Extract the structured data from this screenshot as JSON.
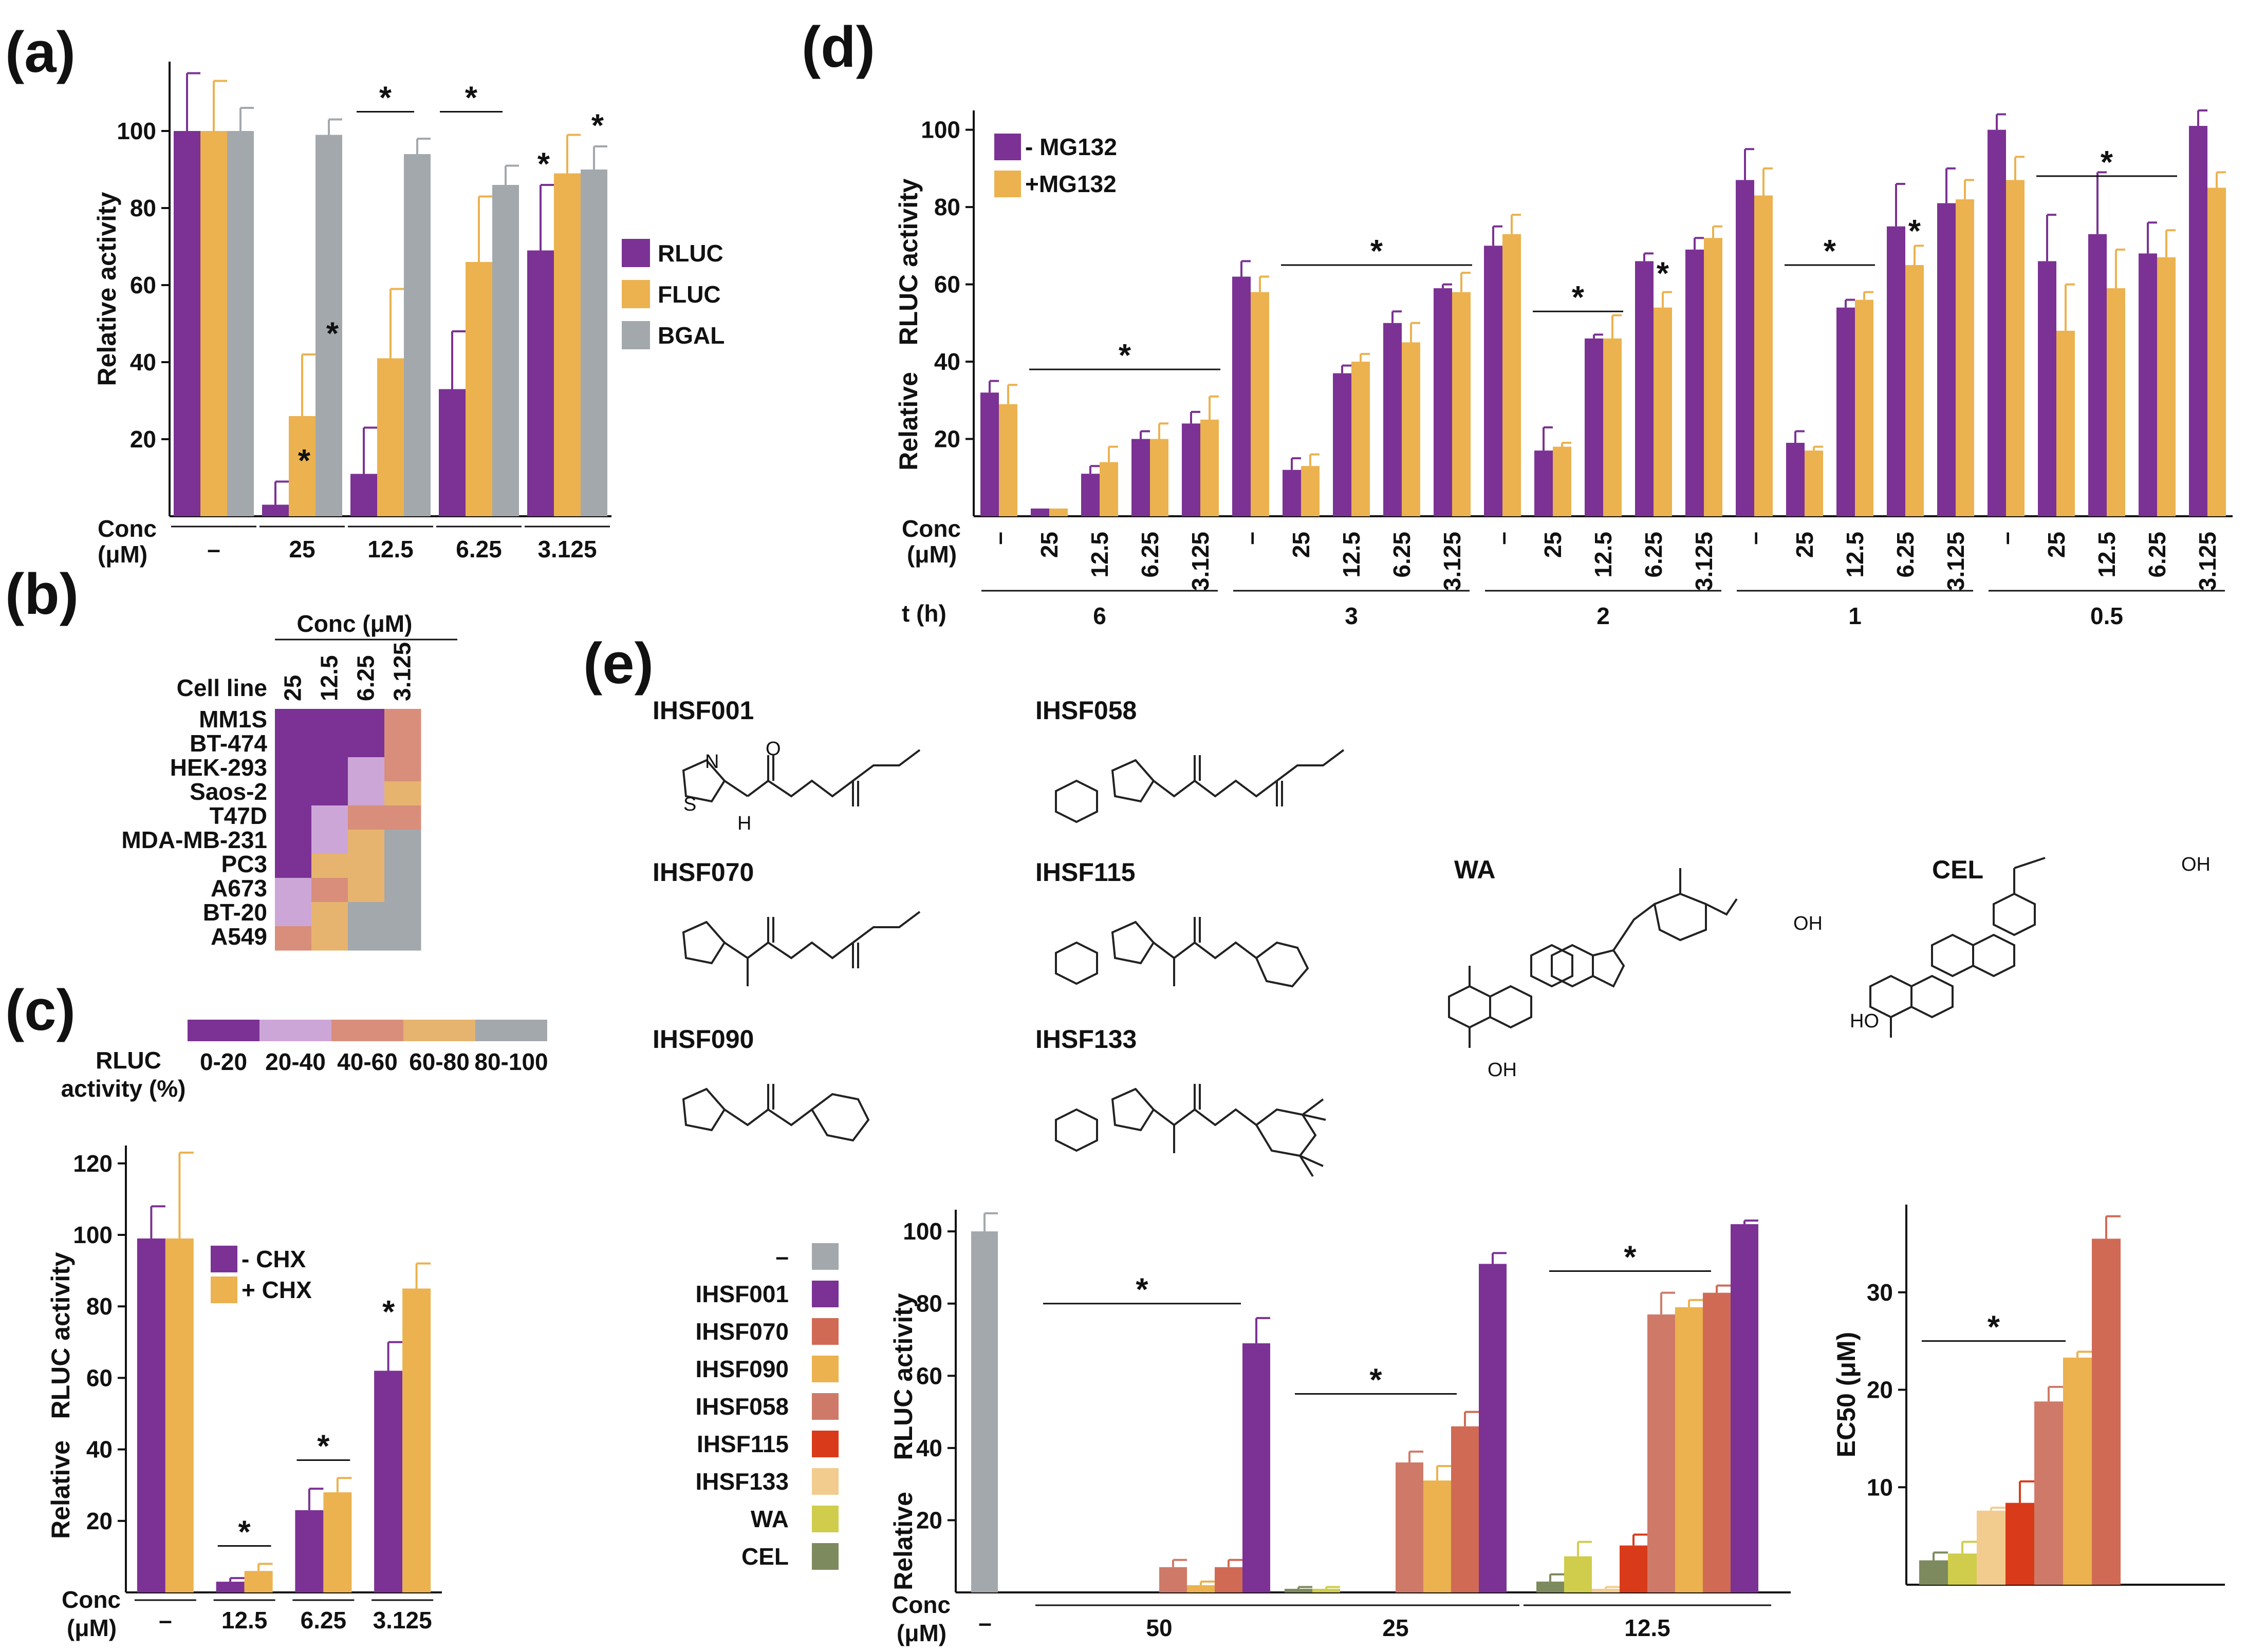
{
  "colors": {
    "purple": "#7b3294",
    "orange": "#ebb24f",
    "grey": "#a3a8ad",
    "heat": [
      "#7b3294",
      "#cda6d8",
      "#d98e7b",
      "#e6b46e",
      "#a3a8ad"
    ],
    "e_series": {
      "–": "#a3a8ad",
      "IHSF001": "#7b3294",
      "IHSF070": "#d06a55",
      "IHSF090": "#ebb24f",
      "IHSF058": "#cf7a68",
      "IHSF115": "#d93b1a",
      "IHSF133": "#f2cc8f",
      "WA": "#cfcd4b",
      "CEL": "#7d8a5e"
    }
  },
  "panels": {
    "a": "(a)",
    "b": "(b)",
    "c": "(c)",
    "d": "(d)",
    "e": "(e)"
  },
  "chart_data": [
    {
      "id": "a",
      "type": "bar",
      "ylabel": "Relative activity",
      "ylim": [
        0,
        118
      ],
      "yticks": [
        20,
        40,
        60,
        80,
        100
      ],
      "xaxis_label": [
        "Conc",
        "(μM)"
      ],
      "categories": [
        "–",
        "25",
        "12.5",
        "6.25",
        "3.125"
      ],
      "series": [
        {
          "name": "RLUC",
          "values": [
            100,
            3,
            11,
            33,
            69
          ],
          "errors": [
            15,
            6,
            12,
            15,
            17
          ]
        },
        {
          "name": "FLUC",
          "values": [
            100,
            26,
            41,
            66,
            89
          ],
          "errors": [
            13,
            16,
            18,
            17,
            10
          ]
        },
        {
          "name": "BGAL",
          "values": [
            100,
            99,
            94,
            86,
            90
          ],
          "errors": [
            6,
            4,
            4,
            5,
            6
          ]
        }
      ],
      "stars": [
        "*",
        "*",
        "*",
        "*",
        "*",
        "*"
      ],
      "legend": "right"
    },
    {
      "id": "b",
      "type": "heatmap",
      "title": "Conc (μM)",
      "row_header": "Cell line",
      "columns": [
        "25",
        "12.5",
        "6.25",
        "3.125"
      ],
      "rows": [
        "MM1S",
        "BT-474",
        "HEK-293",
        "Saos-2",
        "T47D",
        "MDA-MB-231",
        "PC3",
        "A673",
        "BT-20",
        "A549"
      ],
      "bins": [
        [
          0,
          0,
          0,
          2
        ],
        [
          0,
          0,
          0,
          2
        ],
        [
          0,
          0,
          1,
          2
        ],
        [
          0,
          0,
          1,
          3
        ],
        [
          0,
          1,
          2,
          2
        ],
        [
          0,
          1,
          3,
          4
        ],
        [
          0,
          3,
          3,
          4
        ],
        [
          1,
          2,
          3,
          4
        ],
        [
          1,
          3,
          4,
          4
        ],
        [
          2,
          3,
          4,
          4
        ]
      ],
      "legend_title": [
        "RLUC",
        "activity (%)"
      ],
      "legend_bins": [
        "0-20",
        "20-40",
        "40-60",
        "60-80",
        "80-100"
      ]
    },
    {
      "id": "c",
      "type": "bar",
      "ylabel": [
        "Relative",
        "RLUC activity"
      ],
      "ylim": [
        0,
        125
      ],
      "yticks": [
        20,
        40,
        60,
        80,
        100,
        120
      ],
      "xaxis_label": [
        "Conc",
        "(μM)"
      ],
      "categories": [
        "–",
        "12.5",
        "6.25",
        "3.125"
      ],
      "series": [
        {
          "name": "- CHX",
          "values": [
            99,
            3,
            23,
            62
          ],
          "errors": [
            9,
            1,
            6,
            8
          ]
        },
        {
          "name": "+ CHX",
          "values": [
            99,
            6,
            28,
            85
          ],
          "errors": [
            24,
            2,
            4,
            7
          ]
        }
      ],
      "stars": [
        "*",
        "*",
        "*"
      ],
      "legend": "top-right"
    },
    {
      "id": "d",
      "type": "bar",
      "ylabel": [
        "Relative",
        "RLUC activity"
      ],
      "ylim": [
        0,
        105
      ],
      "yticks": [
        20,
        40,
        60,
        80,
        100
      ],
      "xaxis_label": [
        "Conc",
        "(μM)"
      ],
      "group_label": "t (h)",
      "groups": [
        "6",
        "3",
        "2",
        "1",
        "0.5"
      ],
      "categories": [
        "–",
        "25",
        "12.5",
        "6.25",
        "3.125"
      ],
      "series": [
        {
          "name": "- MG132",
          "values": [
            [
              32,
              2,
              11,
              20,
              24
            ],
            [
              62,
              12,
              37,
              50,
              59
            ],
            [
              70,
              17,
              46,
              66,
              69
            ],
            [
              87,
              19,
              54,
              75,
              81
            ],
            [
              100,
              66,
              73,
              68,
              101
            ]
          ],
          "errors": [
            [
              3,
              0,
              2,
              2,
              3
            ],
            [
              4,
              3,
              2,
              3,
              1
            ],
            [
              5,
              6,
              1,
              2,
              3
            ],
            [
              8,
              3,
              2,
              11,
              9
            ],
            [
              4,
              12,
              16,
              8,
              4
            ]
          ]
        },
        {
          "name": "+MG132",
          "values": [
            [
              29,
              2,
              14,
              20,
              25
            ],
            [
              58,
              13,
              40,
              45,
              58
            ],
            [
              73,
              18,
              46,
              54,
              72
            ],
            [
              83,
              17,
              56,
              65,
              82
            ],
            [
              87,
              48,
              59,
              67,
              85
            ]
          ],
          "errors": [
            [
              5,
              0,
              4,
              4,
              6
            ],
            [
              4,
              3,
              2,
              5,
              5
            ],
            [
              5,
              1,
              6,
              4,
              3
            ],
            [
              7,
              1,
              2,
              5,
              5
            ],
            [
              6,
              12,
              10,
              7,
              4
            ]
          ]
        }
      ],
      "stars": [
        "*",
        "*",
        "*",
        "*",
        "*",
        "*"
      ],
      "legend": "top-left"
    },
    {
      "id": "e1",
      "type": "bar",
      "ylabel": [
        "Relative",
        "RLUC activity"
      ],
      "ylim": [
        0,
        106
      ],
      "yticks": [
        20,
        40,
        60,
        80,
        100
      ],
      "xaxis_label": [
        "Conc",
        "(μM)"
      ],
      "categories": [
        "–",
        "50",
        "25",
        "12.5"
      ],
      "series_names": [
        "–",
        "IHSF001",
        "IHSF070",
        "IHSF090",
        "IHSF058",
        "IHSF115",
        "IHSF133",
        "WA",
        "CEL"
      ],
      "bar_order": [
        "CEL",
        "WA",
        "IHSF133",
        "IHSF115",
        "IHSF058",
        "IHSF090",
        "IHSF070",
        "IHSF001"
      ],
      "values": {
        "–": {
          "–": 100
        },
        "50": {
          "CEL": 0,
          "WA": 0,
          "IHSF133": 0,
          "IHSF115": 0,
          "IHSF058": 7,
          "IHSF090": 2,
          "IHSF070": 7,
          "IHSF001": 69
        },
        "25": {
          "CEL": 1,
          "WA": 1,
          "IHSF133": 0,
          "IHSF115": 0,
          "IHSF058": 36,
          "IHSF090": 31,
          "IHSF070": 46,
          "IHSF001": 91
        },
        "12.5": {
          "CEL": 3,
          "WA": 10,
          "IHSF133": 1,
          "IHSF115": 13,
          "IHSF058": 77,
          "IHSF090": 79,
          "IHSF070": 83,
          "IHSF001": 102
        }
      },
      "errors": {
        "–": {
          "–": 5
        },
        "50": {
          "IHSF058": 2,
          "IHSF090": 1,
          "IHSF070": 2,
          "IHSF001": 7
        },
        "25": {
          "CEL": 0.5,
          "WA": 0.5,
          "IHSF058": 3,
          "IHSF090": 4,
          "IHSF070": 4,
          "IHSF001": 3
        },
        "12.5": {
          "CEL": 2,
          "WA": 4,
          "IHSF133": 0.5,
          "IHSF115": 3,
          "IHSF058": 6,
          "IHSF090": 2,
          "IHSF070": 2,
          "IHSF001": 1
        }
      },
      "stars": [
        "*",
        "*",
        "*"
      ]
    },
    {
      "id": "e2",
      "type": "bar",
      "ylabel": "EC50 (μM)",
      "ylim": [
        0,
        39
      ],
      "yticks": [
        10,
        20,
        30
      ],
      "categories": [
        "CEL",
        "WA",
        "IHSF133",
        "IHSF115",
        "IHSF058",
        "IHSF090",
        "IHSF070"
      ],
      "values": [
        2.5,
        3.2,
        7.6,
        8.4,
        18.8,
        23.3,
        35.5
      ],
      "errors": [
        0.8,
        1.2,
        0.3,
        2.2,
        1.5,
        0.6,
        2.3
      ],
      "stars": [
        "*"
      ]
    }
  ],
  "compounds": {
    "names": [
      "IHSF001",
      "IHSF058",
      "IHSF070",
      "IHSF115",
      "IHSF090",
      "IHSF133",
      "WA",
      "CEL"
    ],
    "atoms": {
      "N": "N",
      "S": "S",
      "H": "H",
      "O": "O",
      "OH": "OH",
      "HO": "HO"
    }
  }
}
